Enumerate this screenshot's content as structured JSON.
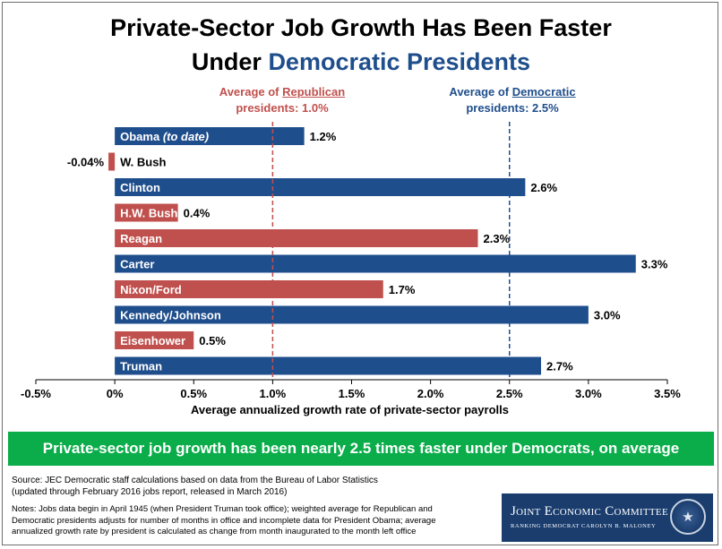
{
  "title": {
    "line1": "Private-Sector Job Growth Has Been Faster",
    "line2_prefix": "Under ",
    "line2_highlight": "Democratic Presidents"
  },
  "annotations": {
    "republican_prefix": "Average of ",
    "republican_word": "Republican",
    "republican_suffix": "presidents: 1.0%",
    "democratic_prefix": "Average of ",
    "democratic_word": "Democratic",
    "democratic_suffix": "presidents: 2.5%"
  },
  "colors": {
    "democratic": "#1f4e8c",
    "republican": "#c0504d",
    "banner": "#0aad4a",
    "logo_bg": "#1a3d6e"
  },
  "chart_data": {
    "type": "bar",
    "orientation": "horizontal",
    "xlabel": "Average annualized growth rate of private-sector payrolls",
    "xlim": [
      -0.5,
      3.5
    ],
    "xticks": [
      -0.5,
      0,
      0.5,
      1.0,
      1.5,
      2.0,
      2.5,
      3.0,
      3.5
    ],
    "xtick_labels": [
      "-0.5%",
      "0%",
      "0.5%",
      "1.0%",
      "1.5%",
      "2.0%",
      "2.5%",
      "3.0%",
      "3.5%"
    ],
    "reference_lines": [
      {
        "party": "republican",
        "value": 1.0
      },
      {
        "party": "democratic",
        "value": 2.5
      }
    ],
    "bars": [
      {
        "label": "Obama",
        "label_suffix": "(to date)",
        "value": 1.2,
        "value_label": "1.2%",
        "party": "democratic"
      },
      {
        "label": "W. Bush",
        "label_suffix": "",
        "value": -0.04,
        "value_label": "-0.04%",
        "party": "republican"
      },
      {
        "label": "Clinton",
        "label_suffix": "",
        "value": 2.6,
        "value_label": "2.6%",
        "party": "democratic"
      },
      {
        "label": "H.W. Bush",
        "label_suffix": "",
        "value": 0.4,
        "value_label": "0.4%",
        "party": "republican"
      },
      {
        "label": "Reagan",
        "label_suffix": "",
        "value": 2.3,
        "value_label": "2.3%",
        "party": "republican"
      },
      {
        "label": "Carter",
        "label_suffix": "",
        "value": 3.3,
        "value_label": "3.3%",
        "party": "democratic"
      },
      {
        "label": "Nixon/Ford",
        "label_suffix": "",
        "value": 1.7,
        "value_label": "1.7%",
        "party": "republican"
      },
      {
        "label": "Kennedy/Johnson",
        "label_suffix": "",
        "value": 3.0,
        "value_label": "3.0%",
        "party": "democratic"
      },
      {
        "label": "Eisenhower",
        "label_suffix": "",
        "value": 0.5,
        "value_label": "0.5%",
        "party": "republican"
      },
      {
        "label": "Truman",
        "label_suffix": "",
        "value": 2.7,
        "value_label": "2.7%",
        "party": "democratic"
      }
    ]
  },
  "banner": {
    "text": "Private-sector job growth has been nearly 2.5 times faster under Democrats, on average"
  },
  "source": {
    "line1": "Source: JEC Democratic staff calculations based on data from the Bureau of Labor Statistics",
    "line2": "(updated through February 2016 jobs report, released in March 2016)"
  },
  "notes": {
    "line1": "Notes: Jobs data begin in April 1945 (when President Truman took office); weighted average for Republican and",
    "line2": "Democratic presidents adjusts for number of months in office and incomplete data for President Obama; average",
    "line3": "annualized growth rate by president is calculated as change from month inaugurated to the month left office"
  },
  "logo": {
    "name": "Joint Economic Committee",
    "subtitle": "RANKING DEMOCRAT CAROLYN B. MALONEY",
    "seal_icon": "congressional-seal-icon"
  }
}
